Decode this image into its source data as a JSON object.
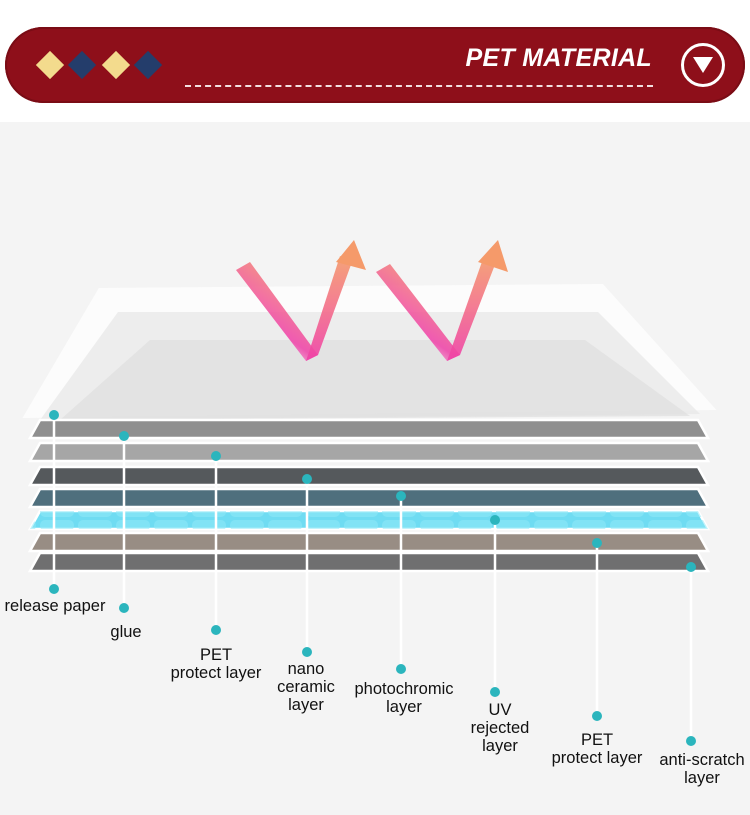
{
  "header": {
    "title": "PET MATERIAL",
    "toggle_icon": "triangle-down-icon",
    "diamond_colors": [
      "#f3db8d",
      "#243d6b",
      "#f3db8d",
      "#243d6b"
    ],
    "bar_color": "#8e0f1a"
  },
  "layers": [
    {
      "id": "release-paper",
      "lines": [
        "release paper"
      ],
      "color": "#8f8f8f"
    },
    {
      "id": "glue",
      "lines": [
        "glue"
      ],
      "color": "#a6a6a6"
    },
    {
      "id": "pet-protect-1",
      "lines": [
        "PET",
        "protect layer"
      ],
      "color": "#55595c"
    },
    {
      "id": "nano-ceramic",
      "lines": [
        "nano",
        "ceramic",
        "layer"
      ],
      "color": "#4f6f7d"
    },
    {
      "id": "photochromic",
      "lines": [
        "photochromic",
        "layer"
      ],
      "color": "#6fdcf2"
    },
    {
      "id": "uv-rejected",
      "lines": [
        "UV",
        "rejected",
        "layer"
      ],
      "color": "#988d84"
    },
    {
      "id": "pet-protect-2",
      "lines": [
        "PET",
        "protect layer"
      ],
      "color": "#6f6f70"
    },
    {
      "id": "anti-scratch",
      "lines": [
        "anti-scratch",
        "layer"
      ],
      "color": "#6a6a6a"
    }
  ],
  "colors": {
    "dot": "#2bb5bd",
    "arrow_pink": "#f040a8",
    "arrow_orange": "#f59a6a"
  }
}
